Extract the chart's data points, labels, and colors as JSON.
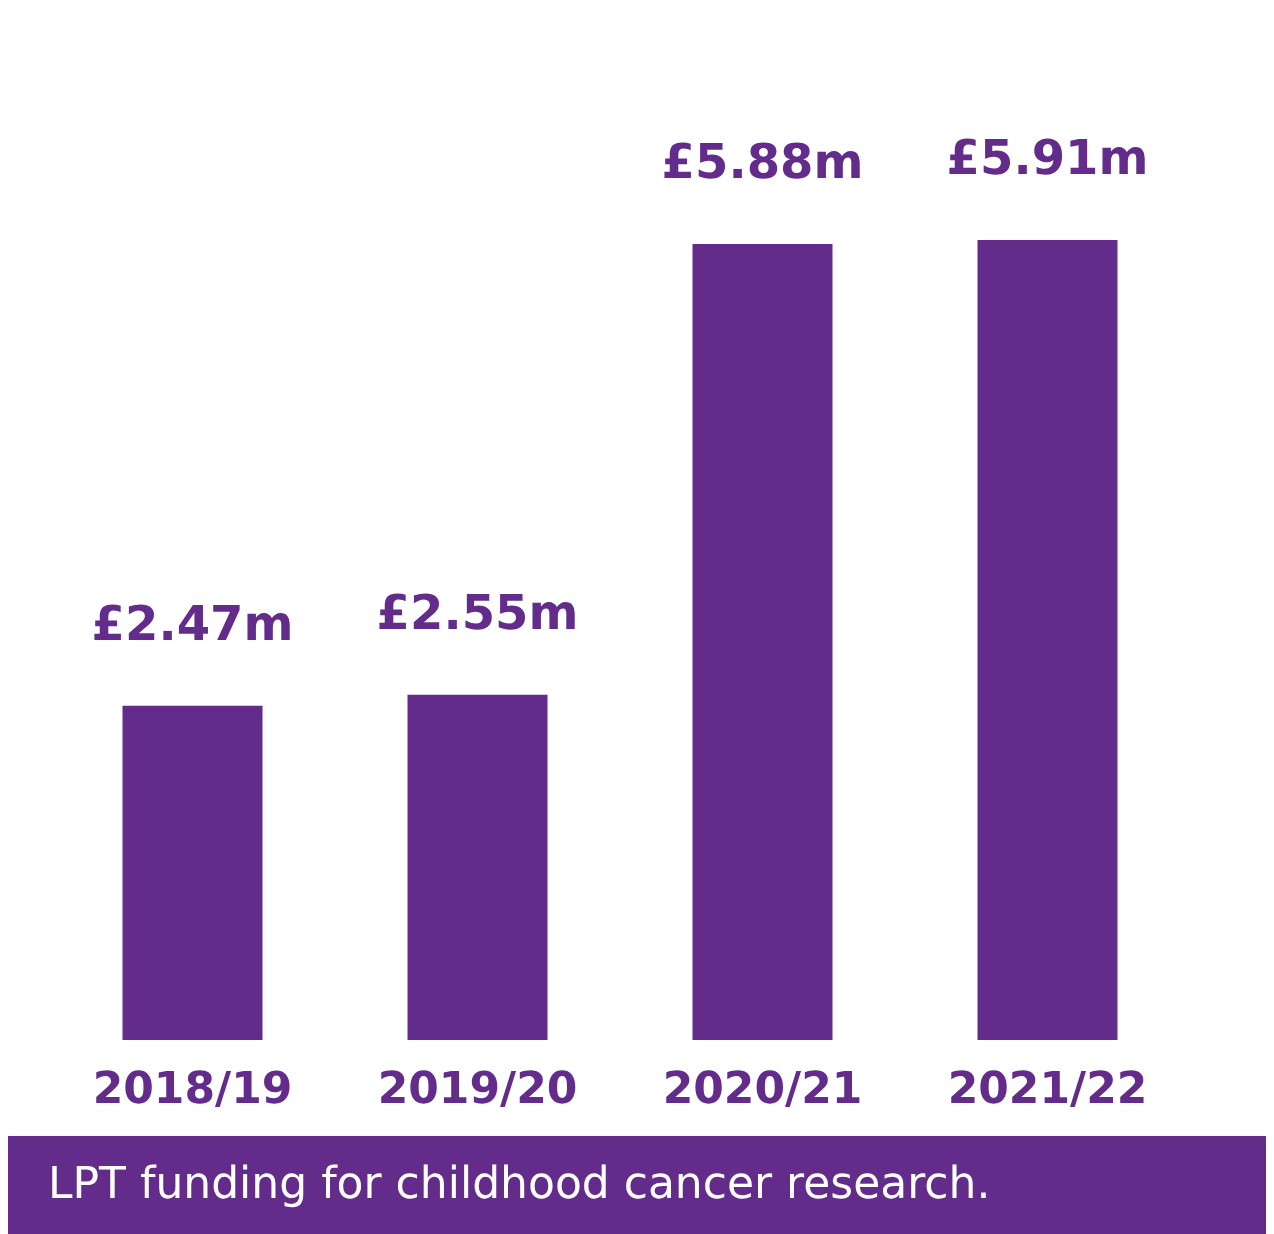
{
  "chart_data": {
    "type": "bar",
    "categories": [
      "2018/19",
      "2019/20",
      "2020/21",
      "2021/22"
    ],
    "values": [
      2.47,
      2.55,
      5.88,
      5.91
    ],
    "value_labels": [
      "£2.47m",
      "£2.55m",
      "£5.88m",
      "£5.91m"
    ],
    "color": "#632b8a",
    "annotations": [
      "LPT funding for childhood cancer research."
    ]
  }
}
